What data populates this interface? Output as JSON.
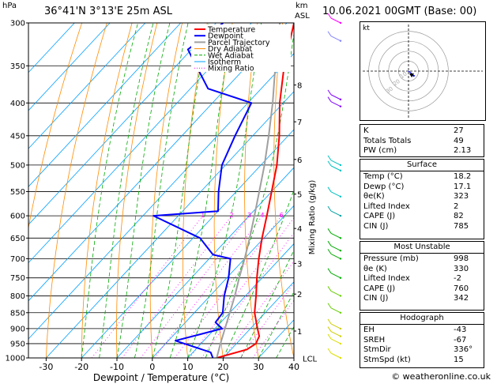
{
  "header": {
    "left_unit": "hPa",
    "location": "36°41'N  3°13'E  25m  ASL",
    "right_unit_top": "km",
    "right_unit_bottom": "ASL",
    "datetime": "10.06.2021  00GMT  (Base: 00)"
  },
  "colors": {
    "temperature": "#ff0000",
    "dewpoint": "#0000ff",
    "parcel": "#a0a0a0",
    "dry_adiabat": "#ff8c00",
    "wet_adiabat": "#00aa00",
    "isotherm": "#00a0ff",
    "mixing_ratio": "#ff00ff",
    "hodo_wind": "#0000ff"
  },
  "legend": [
    "Temperature",
    "Dewpoint",
    "Parcel Trajectory",
    "Dry Adiabat",
    "Wet Adiabat",
    "Isotherm",
    "Mixing Ratio"
  ],
  "chart_data": {
    "type": "line",
    "title": "36°41'N  3°13'E  25m  ASL",
    "xlabel": "Dewpoint / Temperature (°C)",
    "ylabel": "hPa",
    "xlim": [
      -35,
      40
    ],
    "pressure_levels": [
      300,
      350,
      400,
      450,
      500,
      550,
      600,
      650,
      700,
      750,
      800,
      850,
      900,
      950,
      1000
    ],
    "x_ticks": [
      -30,
      -20,
      -10,
      0,
      10,
      20,
      30,
      40
    ],
    "km_ticks": [
      {
        "km": "1",
        "p": 908
      },
      {
        "km": "2",
        "p": 795
      },
      {
        "km": "3",
        "p": 712
      },
      {
        "km": "4",
        "p": 628
      },
      {
        "km": "5",
        "p": 555
      },
      {
        "km": "6",
        "p": 490
      },
      {
        "km": "7",
        "p": 428
      },
      {
        "km": "8",
        "p": 375
      }
    ],
    "lcl_label": "LCL",
    "lcl_pressure": 1002,
    "mixing_ratio_label": "Mixing Ratio (g/kg)",
    "mixing_ratios": [
      "1",
      "2",
      "3",
      "4",
      "6",
      "8",
      "10",
      "15",
      "20",
      "25"
    ],
    "series": [
      {
        "name": "Temperature",
        "points": [
          {
            "p": 1000,
            "t": 18.2
          },
          {
            "p": 970,
            "t": 24.5
          },
          {
            "p": 950,
            "t": 25.5
          },
          {
            "p": 925,
            "t": 24.5
          },
          {
            "p": 900,
            "t": 22.0
          },
          {
            "p": 850,
            "t": 17.0
          },
          {
            "p": 800,
            "t": 13.0
          },
          {
            "p": 750,
            "t": 8.5
          },
          {
            "p": 700,
            "t": 4.0
          },
          {
            "p": 650,
            "t": -0.5
          },
          {
            "p": 600,
            "t": -5.0
          },
          {
            "p": 550,
            "t": -10.0
          },
          {
            "p": 500,
            "t": -15.5
          },
          {
            "p": 450,
            "t": -22.5
          },
          {
            "p": 400,
            "t": -31.0
          },
          {
            "p": 350,
            "t": -39.5
          },
          {
            "p": 300,
            "t": -48.0
          }
        ]
      },
      {
        "name": "Dewpoint",
        "points": [
          {
            "p": 1000,
            "t": 17.1
          },
          {
            "p": 980,
            "t": 15.0
          },
          {
            "p": 940,
            "t": 2.0
          },
          {
            "p": 900,
            "t": 12.0
          },
          {
            "p": 880,
            "t": 8.5
          },
          {
            "p": 850,
            "t": 8.0
          },
          {
            "p": 800,
            "t": 4.0
          },
          {
            "p": 750,
            "t": 0.5
          },
          {
            "p": 700,
            "t": -4.0
          },
          {
            "p": 690,
            "t": -10.0
          },
          {
            "p": 650,
            "t": -18.0
          },
          {
            "p": 600,
            "t": -37.0
          },
          {
            "p": 590,
            "t": -20.0
          },
          {
            "p": 550,
            "t": -25.0
          },
          {
            "p": 500,
            "t": -31.0
          },
          {
            "p": 450,
            "t": -35.0
          },
          {
            "p": 400,
            "t": -39.0
          },
          {
            "p": 380,
            "t": -55.0
          },
          {
            "p": 330,
            "t": -71.0
          },
          {
            "p": 300,
            "t": -68.0
          }
        ]
      },
      {
        "name": "Parcel Trajectory",
        "points": [
          {
            "p": 1000,
            "t": 18.2
          },
          {
            "p": 950,
            "t": 15.5
          },
          {
            "p": 900,
            "t": 12.8
          },
          {
            "p": 850,
            "t": 10.0
          },
          {
            "p": 800,
            "t": 7.0
          },
          {
            "p": 750,
            "t": 3.5
          },
          {
            "p": 700,
            "t": 0.0
          },
          {
            "p": 650,
            "t": -4.0
          },
          {
            "p": 600,
            "t": -8.5
          },
          {
            "p": 550,
            "t": -13.5
          },
          {
            "p": 500,
            "t": -19.0
          },
          {
            "p": 450,
            "t": -25.5
          },
          {
            "p": 400,
            "t": -33.0
          },
          {
            "p": 350,
            "t": -42.0
          },
          {
            "p": 300,
            "t": -52.0
          }
        ]
      }
    ]
  },
  "hodograph": {
    "label": "kt",
    "ring_labels": [
      "10",
      "20",
      "30"
    ]
  },
  "indices": [
    {
      "label": "K",
      "value": "27"
    },
    {
      "label": "Totals Totals",
      "value": "49"
    },
    {
      "label": "PW (cm)",
      "value": "2.13"
    }
  ],
  "surface": {
    "title": "Surface",
    "rows": [
      {
        "label": "Temp (°C)",
        "value": "18.2"
      },
      {
        "label": "Dewp (°C)",
        "value": "17.1"
      },
      {
        "label": "θe(K)",
        "value": "323"
      },
      {
        "label": "Lifted Index",
        "value": "2"
      },
      {
        "label": "CAPE (J)",
        "value": "82"
      },
      {
        "label": "CIN (J)",
        "value": "785"
      }
    ]
  },
  "most_unstable": {
    "title": "Most Unstable",
    "rows": [
      {
        "label": "Pressure (mb)",
        "value": "998"
      },
      {
        "label": "θe (K)",
        "value": "330"
      },
      {
        "label": "Lifted Index",
        "value": "-2"
      },
      {
        "label": "CAPE (J)",
        "value": "760"
      },
      {
        "label": "CIN (J)",
        "value": "342"
      }
    ]
  },
  "hodograph_table": {
    "title": "Hodograph",
    "rows": [
      {
        "label": "EH",
        "value": "-43"
      },
      {
        "label": "SREH",
        "value": "-67"
      },
      {
        "label": "StmDir",
        "value": "336°"
      },
      {
        "label": "StmSpd (kt)",
        "value": "15"
      }
    ]
  },
  "footer": "© weatheronline.co.uk"
}
